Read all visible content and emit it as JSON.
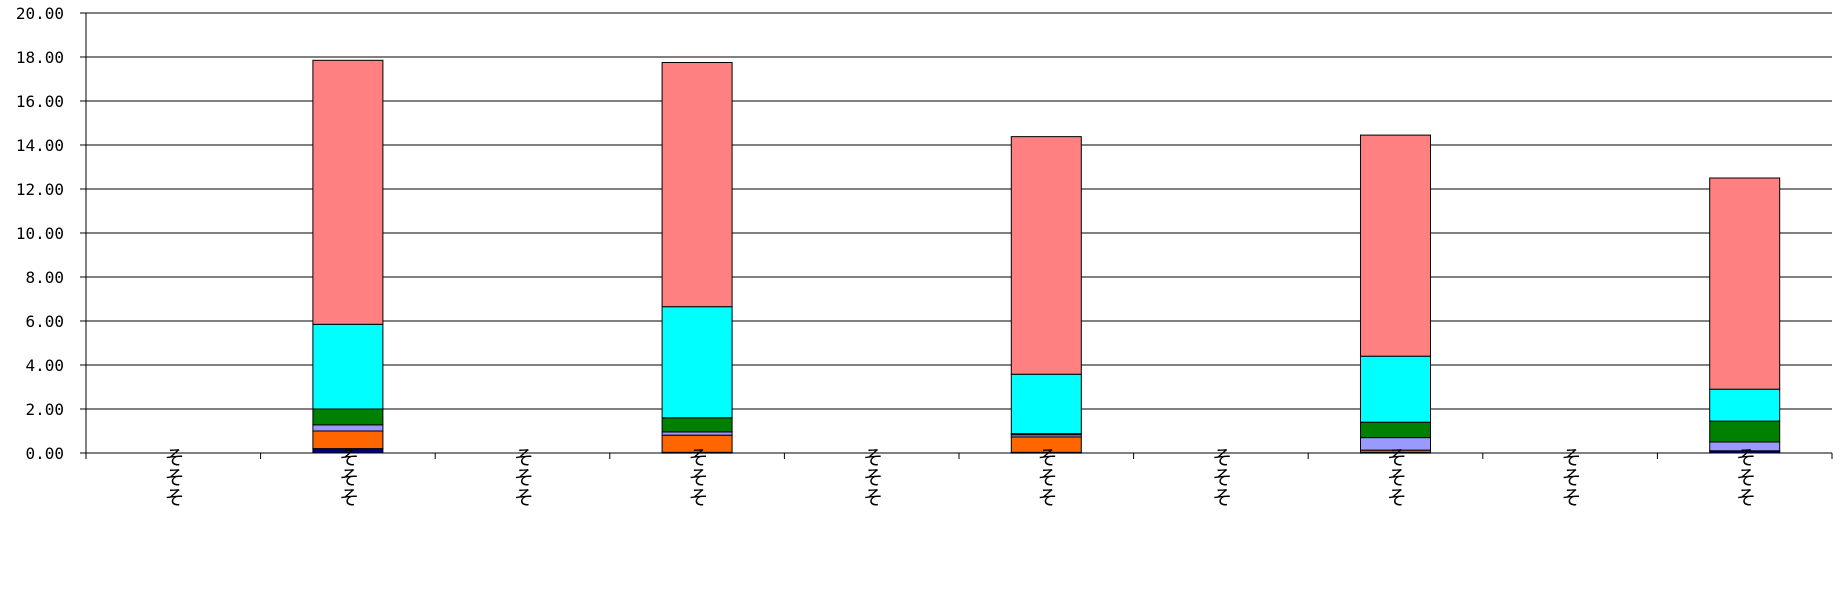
{
  "chart_data": {
    "type": "bar",
    "stacked": true,
    "title": "",
    "xlabel": "",
    "ylabel": "",
    "ylim": [
      0,
      20
    ],
    "y_ticks": [
      "0.00",
      "2.00",
      "4.00",
      "6.00",
      "8.00",
      "10.00",
      "12.00",
      "14.00",
      "16.00",
      "18.00",
      "20.00"
    ],
    "grid": true,
    "legend": "none",
    "categories": [
      "そそそ",
      "そそそ",
      "そそそ",
      "そそそ",
      "そそそ",
      "そそそ",
      "そそそ",
      "そそそ",
      "そそそ",
      "そそそ"
    ],
    "series": [
      {
        "color": "#000080",
        "values": [
          0,
          0.2,
          0,
          0.03,
          0,
          0.03,
          0,
          0.03,
          0,
          0.1
        ]
      },
      {
        "color": "#FF6600",
        "values": [
          0,
          0.8,
          0,
          0.78,
          0,
          0.7,
          0,
          0.1,
          0,
          0
        ]
      },
      {
        "color": "#9999FF",
        "values": [
          0,
          0.28,
          0,
          0.15,
          0,
          0.1,
          0,
          0.57,
          0,
          0.4
        ]
      },
      {
        "color": "#008000",
        "values": [
          0,
          0.72,
          0,
          0.64,
          0,
          0.05,
          0,
          0.7,
          0,
          0.95
        ]
      },
      {
        "color": "#00FFFF",
        "values": [
          0,
          3.85,
          0,
          5.05,
          0,
          2.7,
          0,
          3.0,
          0,
          1.45
        ]
      },
      {
        "color": "#FF8080",
        "values": [
          0,
          12.0,
          0,
          11.1,
          0,
          10.8,
          0,
          10.05,
          0,
          9.6
        ]
      }
    ]
  }
}
